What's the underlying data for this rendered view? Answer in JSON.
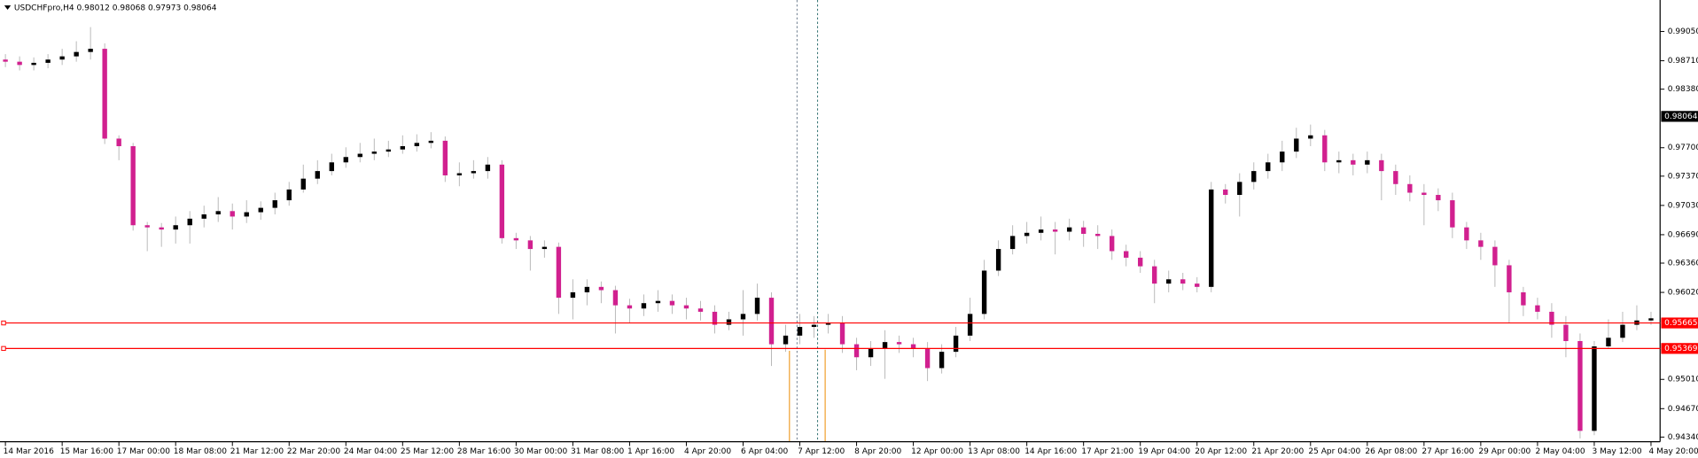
{
  "chart_data": {
    "type": "candlestick",
    "title": "USDCHFpro,H4  0.98012 0.98068 0.97973 0.98064",
    "categories": [
      "14 Mar 2016",
      null,
      null,
      null,
      "15 Mar 16:00",
      null,
      null,
      null,
      "17 Mar 00:00",
      null,
      null,
      null,
      "18 Mar 08:00",
      null,
      null,
      null,
      "21 Mar 12:00",
      null,
      null,
      null,
      "22 Mar 20:00",
      null,
      null,
      null,
      "24 Mar 04:00",
      null,
      null,
      null,
      "25 Mar 12:00",
      null,
      null,
      null,
      "28 Mar 16:00",
      null,
      null,
      null,
      "30 Mar 00:00",
      null,
      null,
      null,
      "31 Mar 08:00",
      null,
      null,
      null,
      "1 Apr 16:00",
      null,
      null,
      null,
      "4 Apr 20:00",
      null,
      null,
      null,
      "6 Apr 04:00",
      null,
      null,
      null,
      "7 Apr 12:00",
      null,
      null,
      null,
      "8 Apr 20:00",
      null,
      null,
      null,
      "12 Apr 00:00",
      null,
      null,
      null,
      "13 Apr 08:00",
      null,
      null,
      null,
      "14 Apr 16:00",
      null,
      null,
      null,
      "17 Apr 21:00",
      null,
      null,
      null,
      "19 Apr 04:00",
      null,
      null,
      null,
      "20 Apr 12:00",
      null,
      null,
      null,
      "21 Apr 20:00",
      null,
      null,
      null,
      "25 Apr 04:00",
      null,
      null,
      null,
      "26 Apr 08:00",
      null,
      null,
      null,
      "27 Apr 16:00",
      null,
      null,
      null,
      "29 Apr 00:00",
      null,
      null,
      null,
      "2 May 04:00",
      null,
      null,
      null,
      "3 May 12:00",
      null,
      null,
      null,
      "4 May 20:00"
    ],
    "open": [
      0.98724,
      0.98699,
      0.98661,
      0.98686,
      0.98724,
      0.98761,
      0.98812,
      0.98849,
      0.97806,
      0.97718,
      0.968,
      0.96775,
      0.9675,
      0.968,
      0.96876,
      0.96926,
      0.96964,
      0.96901,
      0.96951,
      0.97002,
      0.9709,
      0.97215,
      0.97341,
      0.97429,
      0.9753,
      0.97592,
      0.9763,
      0.97655,
      0.9768,
      0.97718,
      0.97756,
      0.97781,
      0.97379,
      0.97404,
      0.97429,
      0.97504,
      0.9665,
      0.96624,
      0.96524,
      0.96549,
      0.95958,
      0.96021,
      0.96084,
      0.96046,
      0.9587,
      0.95833,
      0.95895,
      0.95921,
      0.9587,
      0.95833,
      0.95795,
      0.95644,
      0.95707,
      0.9577,
      0.95958,
      0.95418,
      0.95518,
      0.95619,
      0.95644,
      0.95669,
      0.95418,
      0.95267,
      0.95367,
      0.95443,
      0.95418,
      0.95367,
      0.95141,
      0.9533,
      0.95518,
      0.9577,
      0.96273,
      0.96524,
      0.96675,
      0.96712,
      0.9675,
      0.96725,
      0.96775,
      0.967,
      0.96675,
      0.96499,
      0.96423,
      0.96323,
      0.96122,
      0.96172,
      0.96122,
      0.96084,
      0.97215,
      0.97152,
      0.97303,
      0.97429,
      0.9753,
      0.97655,
      0.97806,
      0.97844,
      0.9753,
      0.97555,
      0.97504,
      0.97555,
      0.97429,
      0.97278,
      0.97178,
      0.97152,
      0.9709,
      0.96775,
      0.96624,
      0.96549,
      0.96335,
      0.96021,
      0.9587,
      0.95795,
      0.95644,
      0.95455,
      0.94412,
      0.95393,
      0.95493,
      0.95644,
      0.95694
    ],
    "high": [
      0.98787,
      0.98761,
      0.98749,
      0.98787,
      0.98849,
      0.98937,
      0.99101,
      0.98912,
      0.97844,
      0.97756,
      0.96838,
      0.96826,
      0.96901,
      0.96964,
      0.97027,
      0.97127,
      0.97052,
      0.9709,
      0.97077,
      0.97178,
      0.97303,
      0.97504,
      0.97555,
      0.9763,
      0.97705,
      0.97756,
      0.97806,
      0.97781,
      0.97844,
      0.97856,
      0.97881,
      0.97831,
      0.9753,
      0.97555,
      0.97592,
      0.97555,
      0.96712,
      0.96675,
      0.96624,
      0.96599,
      0.96172,
      0.96172,
      0.96147,
      0.96097,
      0.95946,
      0.95996,
      0.96046,
      0.95996,
      0.95958,
      0.95921,
      0.9587,
      0.95795,
      0.96046,
      0.96122,
      0.96021,
      0.95644,
      0.9577,
      0.95745,
      0.9577,
      0.95745,
      0.95493,
      0.95455,
      0.95581,
      0.95518,
      0.95493,
      0.95443,
      0.95418,
      0.95619,
      0.95958,
      0.96398,
      0.96624,
      0.968,
      0.96838,
      0.96901,
      0.96838,
      0.96876,
      0.96851,
      0.968,
      0.9675,
      0.96574,
      0.96499,
      0.96398,
      0.96273,
      0.96247,
      0.96197,
      0.97303,
      0.97278,
      0.97404,
      0.9753,
      0.9763,
      0.97781,
      0.97932,
      0.97969,
      0.97907,
      0.97655,
      0.9763,
      0.97655,
      0.9763,
      0.97504,
      0.97379,
      0.97278,
      0.97228,
      0.97178,
      0.96838,
      0.96712,
      0.96624,
      0.96398,
      0.96084,
      0.95958,
      0.95895,
      0.95745,
      0.95543,
      0.95455,
      0.95707,
      0.95795,
      0.9587,
      0.95795
    ],
    "low": [
      0.98636,
      0.98598,
      0.98598,
      0.98623,
      0.98661,
      0.98699,
      0.98724,
      0.97743,
      0.97555,
      0.96738,
      0.96499,
      0.96549,
      0.96587,
      0.96587,
      0.96775,
      0.96838,
      0.9675,
      0.96826,
      0.96863,
      0.96926,
      0.97027,
      0.97178,
      0.97278,
      0.97379,
      0.97467,
      0.9753,
      0.97555,
      0.97592,
      0.9763,
      0.97655,
      0.97693,
      0.97303,
      0.97253,
      0.97341,
      0.97341,
      0.96587,
      0.96524,
      0.96273,
      0.96423,
      0.9577,
      0.95707,
      0.9587,
      0.95895,
      0.95543,
      0.95669,
      0.95745,
      0.95795,
      0.9577,
      0.95707,
      0.95694,
      0.95543,
      0.95581,
      0.95518,
      0.95694,
      0.95166,
      0.9533,
      0.95418,
      0.95493,
      0.95543,
      0.95317,
      0.95116,
      0.95166,
      0.95016,
      0.95317,
      0.95267,
      0.9499,
      0.95078,
      0.95267,
      0.95455,
      0.95707,
      0.9621,
      0.96461,
      0.96587,
      0.96624,
      0.96461,
      0.96624,
      0.96549,
      0.96524,
      0.96398,
      0.96323,
      0.96247,
      0.95895,
      0.96021,
      0.96046,
      0.96021,
      0.96021,
      0.97052,
      0.96901,
      0.97215,
      0.97341,
      0.97429,
      0.9758,
      0.97718,
      0.97429,
      0.97404,
      0.97379,
      0.97404,
      0.9709,
      0.97152,
      0.97077,
      0.968,
      0.96964,
      0.9665,
      0.96524,
      0.96398,
      0.96084,
      0.95669,
      0.95745,
      0.95707,
      0.95493,
      0.95267,
      0.94324,
      0.94362,
      0.95367,
      0.95443,
      0.95581,
      0.95644
    ],
    "close": [
      0.98699,
      0.98661,
      0.98686,
      0.98724,
      0.98761,
      0.98812,
      0.98849,
      0.97806,
      0.97718,
      0.968,
      0.96775,
      0.9675,
      0.968,
      0.96876,
      0.96926,
      0.96964,
      0.96901,
      0.96951,
      0.97002,
      0.9709,
      0.97215,
      0.97341,
      0.97429,
      0.9753,
      0.97592,
      0.9763,
      0.97655,
      0.9768,
      0.97718,
      0.97756,
      0.97781,
      0.97379,
      0.97404,
      0.97429,
      0.97504,
      0.9665,
      0.96624,
      0.96524,
      0.96549,
      0.95958,
      0.96021,
      0.96084,
      0.96046,
      0.9587,
      0.95833,
      0.95895,
      0.95921,
      0.9587,
      0.95833,
      0.95795,
      0.95644,
      0.95707,
      0.9577,
      0.95958,
      0.95418,
      0.95518,
      0.95619,
      0.95644,
      0.95669,
      0.95418,
      0.95267,
      0.95367,
      0.95443,
      0.95418,
      0.95367,
      0.95141,
      0.9533,
      0.95518,
      0.9577,
      0.96273,
      0.96524,
      0.96675,
      0.96712,
      0.9675,
      0.96725,
      0.96775,
      0.967,
      0.96675,
      0.96499,
      0.96423,
      0.96323,
      0.96122,
      0.96172,
      0.96122,
      0.96084,
      0.97215,
      0.97152,
      0.97303,
      0.97429,
      0.9753,
      0.97655,
      0.97806,
      0.97844,
      0.9753,
      0.97555,
      0.97504,
      0.97555,
      0.97429,
      0.97278,
      0.97178,
      0.97152,
      0.9709,
      0.96775,
      0.96624,
      0.96549,
      0.96335,
      0.96021,
      0.9587,
      0.95795,
      0.95644,
      0.95455,
      0.94412,
      0.95393,
      0.95493,
      0.95644,
      0.95694,
      0.95719
    ],
    "up_color": "#000000",
    "down_color": "#d1208f",
    "ylim": [
      0.94286,
      0.99415
    ],
    "yticks": [
      {
        "value": 0.9905,
        "label": "0.99050"
      },
      {
        "value": 0.9871,
        "label": "0.98710"
      },
      {
        "value": 0.9838,
        "label": "0.98380"
      },
      {
        "value": 0.977,
        "label": "0.97700"
      },
      {
        "value": 0.9737,
        "label": "0.97370"
      },
      {
        "value": 0.9703,
        "label": "0.97030"
      },
      {
        "value": 0.9669,
        "label": "0.96690"
      },
      {
        "value": 0.9636,
        "label": "0.96360"
      },
      {
        "value": 0.9602,
        "label": "0.96020"
      },
      {
        "value": 0.9501,
        "label": "0.95010"
      },
      {
        "value": 0.9467,
        "label": "0.94670"
      },
      {
        "value": 0.9434,
        "label": "0.94340"
      }
    ],
    "last_price": 0.98064,
    "hlines": [
      {
        "value": 0.95665,
        "color": "#ff0000"
      },
      {
        "value": 0.95369,
        "color": "#ff0000"
      }
    ]
  }
}
